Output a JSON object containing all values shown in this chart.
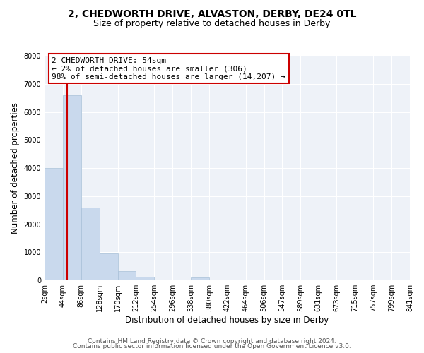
{
  "title": "2, CHEDWORTH DRIVE, ALVASTON, DERBY, DE24 0TL",
  "subtitle": "Size of property relative to detached houses in Derby",
  "xlabel": "Distribution of detached houses by size in Derby",
  "ylabel": "Number of detached properties",
  "bin_edges": [
    2,
    44,
    86,
    128,
    170,
    212,
    254,
    296,
    338,
    380,
    422,
    464,
    506,
    547,
    589,
    631,
    673,
    715,
    757,
    799,
    841
  ],
  "counts": [
    4000,
    6600,
    2600,
    950,
    320,
    120,
    0,
    0,
    100,
    0,
    0,
    0,
    0,
    0,
    0,
    0,
    0,
    0,
    0,
    0
  ],
  "bar_color": "#c9d9ed",
  "bar_edgecolor": "#a8c0d8",
  "bar_linewidth": 0.5,
  "vline_x": 54,
  "vline_color": "#cc0000",
  "vline_linewidth": 1.5,
  "annotation_line1": "2 CHEDWORTH DRIVE: 54sqm",
  "annotation_line2": "← 2% of detached houses are smaller (306)",
  "annotation_line3": "98% of semi-detached houses are larger (14,207) →",
  "annotation_box_color": "#cc0000",
  "ylim": [
    0,
    8000
  ],
  "yticks": [
    0,
    1000,
    2000,
    3000,
    4000,
    5000,
    6000,
    7000,
    8000
  ],
  "bg_color": "#eef2f8",
  "footer_line1": "Contains HM Land Registry data © Crown copyright and database right 2024.",
  "footer_line2": "Contains public sector information licensed under the Open Government Licence v3.0.",
  "title_fontsize": 10,
  "subtitle_fontsize": 9,
  "axis_label_fontsize": 8.5,
  "tick_fontsize": 7,
  "annotation_fontsize": 8,
  "footer_fontsize": 6.5
}
